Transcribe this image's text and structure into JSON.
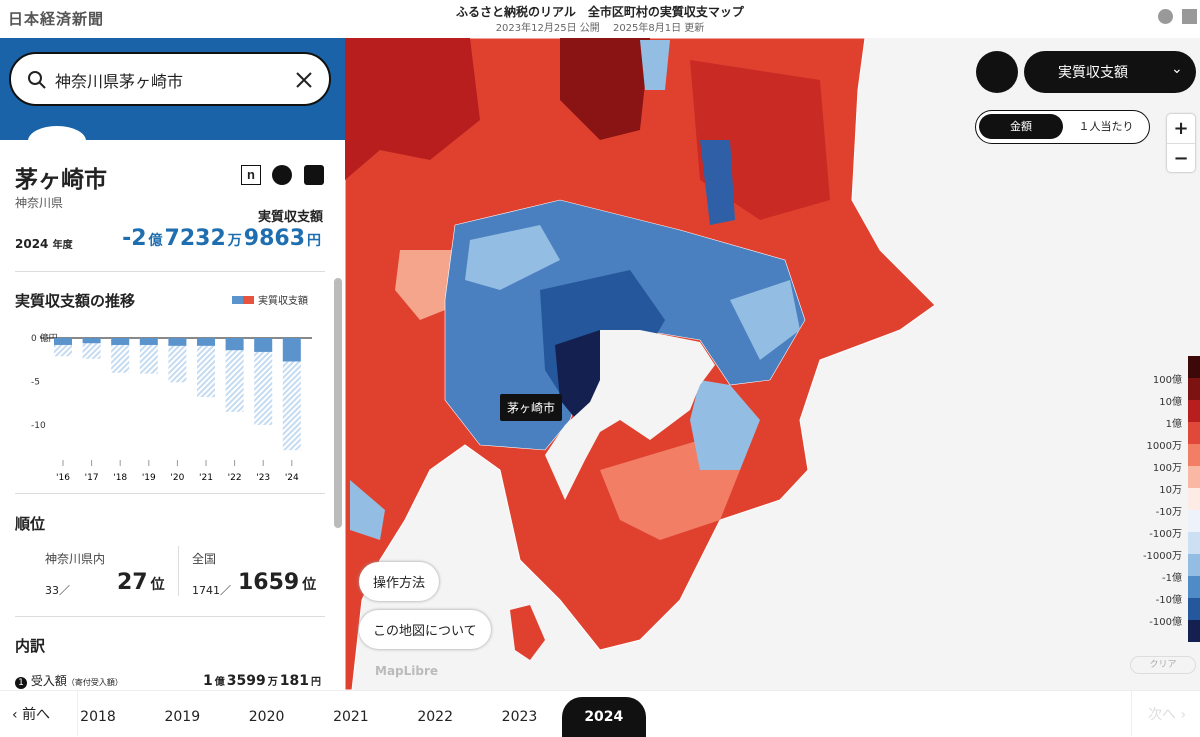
{
  "header": {
    "logo": "日本経済新聞",
    "title": "ふるさと納税のリアル　全市区町村の実質収支マップ",
    "published": "2023年12月25日 公開",
    "updated": "2025年8月1日 更新"
  },
  "search": {
    "query": "神奈川県茅ヶ崎市"
  },
  "city": {
    "name": "茅ヶ崎市",
    "prefecture": "神奈川県",
    "metric_label": "実質収支額",
    "year": "2024",
    "year_unit": "年度",
    "amount_parts": [
      "-2",
      "億",
      "7232",
      "万",
      "9863",
      "円"
    ]
  },
  "chart_data": {
    "type": "bar",
    "title": "実質収支額の推移",
    "categories": [
      "'16",
      "'17",
      "'18",
      "'19",
      "'20",
      "'21",
      "'22",
      "'23",
      "'24"
    ],
    "series": [
      {
        "color": "#cfe0f2",
        "values": [
          -2.1,
          -2.4,
          -4.0,
          -4.1,
          -5.1,
          -6.8,
          -8.5,
          -10.0,
          -12.9
        ]
      },
      {
        "name": "実質収支額",
        "color": "#5b93cc",
        "values": [
          -0.8,
          -0.6,
          -0.8,
          -0.8,
          -0.9,
          -0.9,
          -1.4,
          -1.6,
          -2.7
        ]
      }
    ],
    "ylim": [
      -13,
      0
    ],
    "yticks": [
      {
        "value": 0,
        "label": "0 億円"
      },
      {
        "value": -5,
        "label": "-5"
      },
      {
        "value": -10,
        "label": "-10"
      }
    ]
  },
  "rank": {
    "title": "順位",
    "pref_label": "神奈川県内",
    "pref_total": "33／",
    "pref_rank": "27",
    "pref_unit": "位",
    "nation_label": "全国",
    "nation_total": "1741／",
    "nation_rank": "1659",
    "nation_unit": "位"
  },
  "breakdown": {
    "title": "内訳",
    "num": "1",
    "item": "受入額",
    "note": "（寄付受入額）",
    "amount_parts": [
      "1",
      "億",
      "3599",
      "万",
      "181",
      "円"
    ]
  },
  "map": {
    "tooltip": "茅ヶ崎市",
    "metric_button": "実質収支額",
    "toggle": [
      "金額",
      "１人当たり"
    ],
    "zoom_in": "+",
    "zoom_out": "−",
    "help": "操作方法",
    "about": "この地図について",
    "attribution": "MapLibre",
    "clear": "クリア",
    "legend": {
      "colors": [
        "#3d0808",
        "#7d1212",
        "#b81e1e",
        "#e0483a",
        "#f27e66",
        "#f9b8a3",
        "#fdecE6",
        "#eef3fb",
        "#cde0f3",
        "#93bde3",
        "#4f8bc7",
        "#24579b",
        "#14204f"
      ],
      "labels": [
        "100億",
        "10億",
        "1億",
        "1000万",
        "100万",
        "10万",
        "-10万",
        "-100万",
        "-1000万",
        "-1億",
        "-10億",
        "-100億"
      ]
    }
  },
  "nav": {
    "prev": "前へ",
    "next": "次へ",
    "years": [
      "2018",
      "2019",
      "2020",
      "2021",
      "2022",
      "2023",
      "2024"
    ],
    "selected": "2024"
  }
}
